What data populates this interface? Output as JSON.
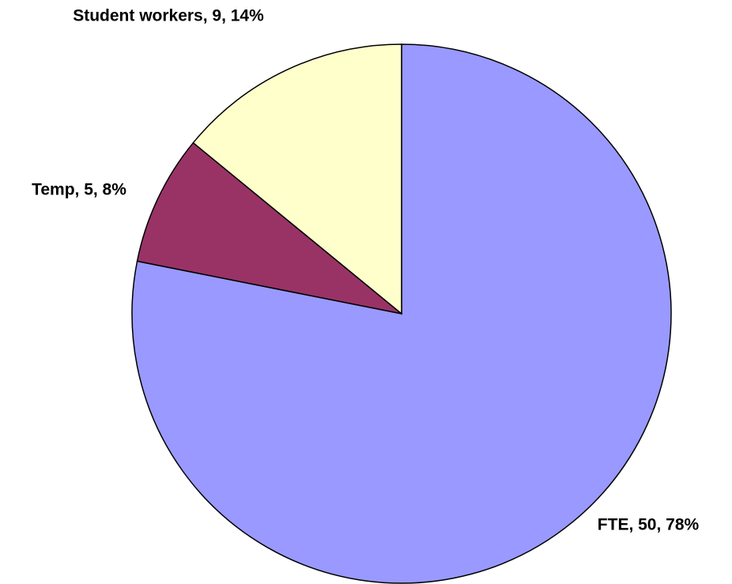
{
  "chart_data": {
    "type": "pie",
    "values": [
      50,
      5,
      9
    ],
    "value_labels": [
      "FTE, 50, 78%",
      "Temp, 5, 8%",
      "Student workers, 9, 14%"
    ],
    "colors": [
      "#9999ff",
      "#993366",
      "#ffffcc"
    ]
  }
}
